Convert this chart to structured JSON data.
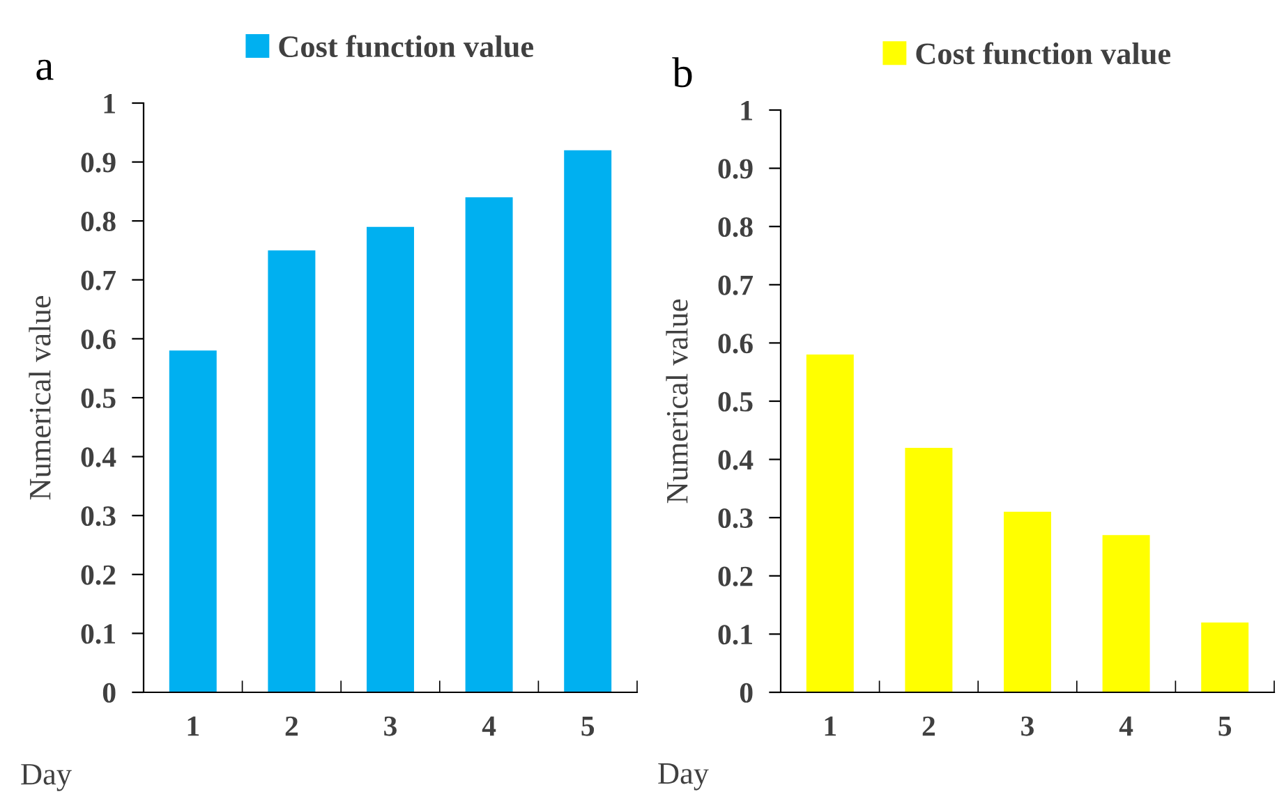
{
  "chart_data": [
    {
      "type": "bar",
      "title": "a",
      "xlabel": "Day",
      "ylabel": "Numerical value",
      "categories": [
        "1",
        "2",
        "3",
        "4",
        "5"
      ],
      "series": [
        {
          "name": "Cost function value",
          "color": "#00b0f0",
          "values": [
            0.58,
            0.75,
            0.79,
            0.84,
            0.92
          ]
        }
      ],
      "ylim": [
        0,
        1
      ],
      "yticks": [
        0,
        0.1,
        0.2,
        0.3,
        0.4,
        0.5,
        0.6,
        0.7,
        0.8,
        0.9,
        1
      ],
      "legend": "top",
      "grid": false
    },
    {
      "type": "bar",
      "title": "b",
      "xlabel": "Day",
      "ylabel": "Numerical value",
      "categories": [
        "1",
        "2",
        "3",
        "4",
        "5"
      ],
      "series": [
        {
          "name": "Cost function value",
          "color": "#ffff00",
          "values": [
            0.58,
            0.42,
            0.31,
            0.27,
            0.12
          ]
        }
      ],
      "ylim": [
        0,
        1
      ],
      "yticks": [
        0,
        0.1,
        0.2,
        0.3,
        0.4,
        0.5,
        0.6,
        0.7,
        0.8,
        0.9,
        1
      ],
      "legend": "top",
      "grid": false
    }
  ]
}
